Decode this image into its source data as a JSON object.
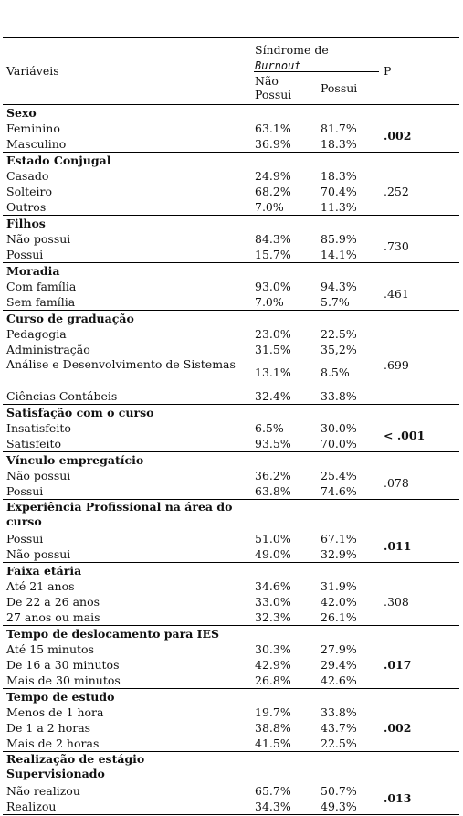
{
  "header": {
    "variables": "Variáveis",
    "syndrome_line1": "Síndrome de",
    "syndrome_line2": "Burnout",
    "p": "P",
    "nao_possui_line1": "Não",
    "nao_possui_line2": "Possui",
    "possui": "Possui"
  },
  "groups": [
    {
      "title": "Sexo",
      "p": ".002",
      "p_bold": true,
      "rows": [
        {
          "label": "Feminino",
          "nao": "63.1%",
          "sim": "81.7%"
        },
        {
          "label": "Masculino",
          "nao": "36.9%",
          "sim": "18.3%"
        }
      ]
    },
    {
      "title": "Estado Conjugal",
      "p": ".252",
      "p_bold": false,
      "rows": [
        {
          "label": "Casado",
          "nao": "24.9%",
          "sim": "18.3%"
        },
        {
          "label": "Solteiro",
          "nao": "68.2%",
          "sim": "70.4%"
        },
        {
          "label": "Outros",
          "nao": "7.0%",
          "sim": "11.3%"
        }
      ]
    },
    {
      "title": "Filhos",
      "p": ".730",
      "p_bold": false,
      "rows": [
        {
          "label": "Não possui",
          "nao": "84.3%",
          "sim": "85.9%"
        },
        {
          "label": "Possui",
          "nao": "15.7%",
          "sim": "14.1%"
        }
      ]
    },
    {
      "title": "Moradia",
      "p": ".461",
      "p_bold": false,
      "rows": [
        {
          "label": "Com família",
          "nao": "93.0%",
          "sim": "94.3%"
        },
        {
          "label": "Sem família",
          "nao": "7.0%",
          "sim": "5.7%"
        }
      ]
    },
    {
      "title": "Curso de graduação",
      "p": ".699",
      "p_bold": false,
      "rows": [
        {
          "label": "Pedagogia",
          "nao": "23.0%",
          "sim": "22.5%"
        },
        {
          "label": "Administração",
          "nao": "31.5%",
          "sim": "35,2%"
        },
        {
          "label": "Análise e Desenvolvimento de Sistemas",
          "nao": "13.1%",
          "sim": "8.5%",
          "tall": true
        },
        {
          "label": "Ciências Contábeis",
          "nao": "32.4%",
          "sim": "33.8%"
        }
      ]
    },
    {
      "title": "Satisfação com o curso",
      "p": "< .001",
      "p_bold": true,
      "rows": [
        {
          "label": "Insatisfeito",
          "nao": "6.5%",
          "sim": "30.0%"
        },
        {
          "label": "Satisfeito",
          "nao": "93.5%",
          "sim": "70.0%"
        }
      ]
    },
    {
      "title": "Vínculo empregatício",
      "p": ".078",
      "p_bold": false,
      "rows": [
        {
          "label": "Não possui",
          "nao": "36.2%",
          "sim": "25.4%"
        },
        {
          "label": "Possui",
          "nao": "63.8%",
          "sim": "74.6%"
        }
      ]
    },
    {
      "title": "Experiência Profissional na área do curso",
      "title_tall": true,
      "p": ".011",
      "p_bold": true,
      "rows": [
        {
          "label": "Possui",
          "nao": "51.0%",
          "sim": "67.1%"
        },
        {
          "label": "Não possui",
          "nao": "49.0%",
          "sim": "32.9%"
        }
      ]
    },
    {
      "title": "Faixa etária",
      "p": ".308",
      "p_bold": false,
      "rows": [
        {
          "label": "Até 21 anos",
          "nao": "34.6%",
          "sim": "31.9%"
        },
        {
          "label": "De 22 a 26 anos",
          "nao": "33.0%",
          "sim": "42.0%"
        },
        {
          "label": "27 anos ou mais",
          "nao": "32.3%",
          "sim": "26.1%"
        }
      ]
    },
    {
      "title": "Tempo de deslocamento para IES",
      "p": ".017",
      "p_bold": true,
      "rows": [
        {
          "label": "Até 15 minutos",
          "nao": "30.3%",
          "sim": "27.9%"
        },
        {
          "label": "De 16 a 30 minutos",
          "nao": "42.9%",
          "sim": "29.4%"
        },
        {
          "label": "Mais de 30 minutos",
          "nao": "26.8%",
          "sim": "42.6%"
        }
      ]
    },
    {
      "title": "Tempo de estudo",
      "p": ".002",
      "p_bold": true,
      "rows": [
        {
          "label": "Menos de 1 hora",
          "nao": "19.7%",
          "sim": "33.8%"
        },
        {
          "label": "De 1 a 2 horas",
          "nao": "38.8%",
          "sim": "43.7%"
        },
        {
          "label": "Mais de 2 horas",
          "nao": "41.5%",
          "sim": "22.5%"
        }
      ]
    },
    {
      "title": "Realização de estágio Supervisionado",
      "title_tall": true,
      "p": ".013",
      "p_bold": true,
      "rows": [
        {
          "label": "Não realizou",
          "nao": "65.7%",
          "sim": "50.7%"
        },
        {
          "label": "Realizou",
          "nao": "34.3%",
          "sim": "49.3%"
        }
      ]
    }
  ]
}
